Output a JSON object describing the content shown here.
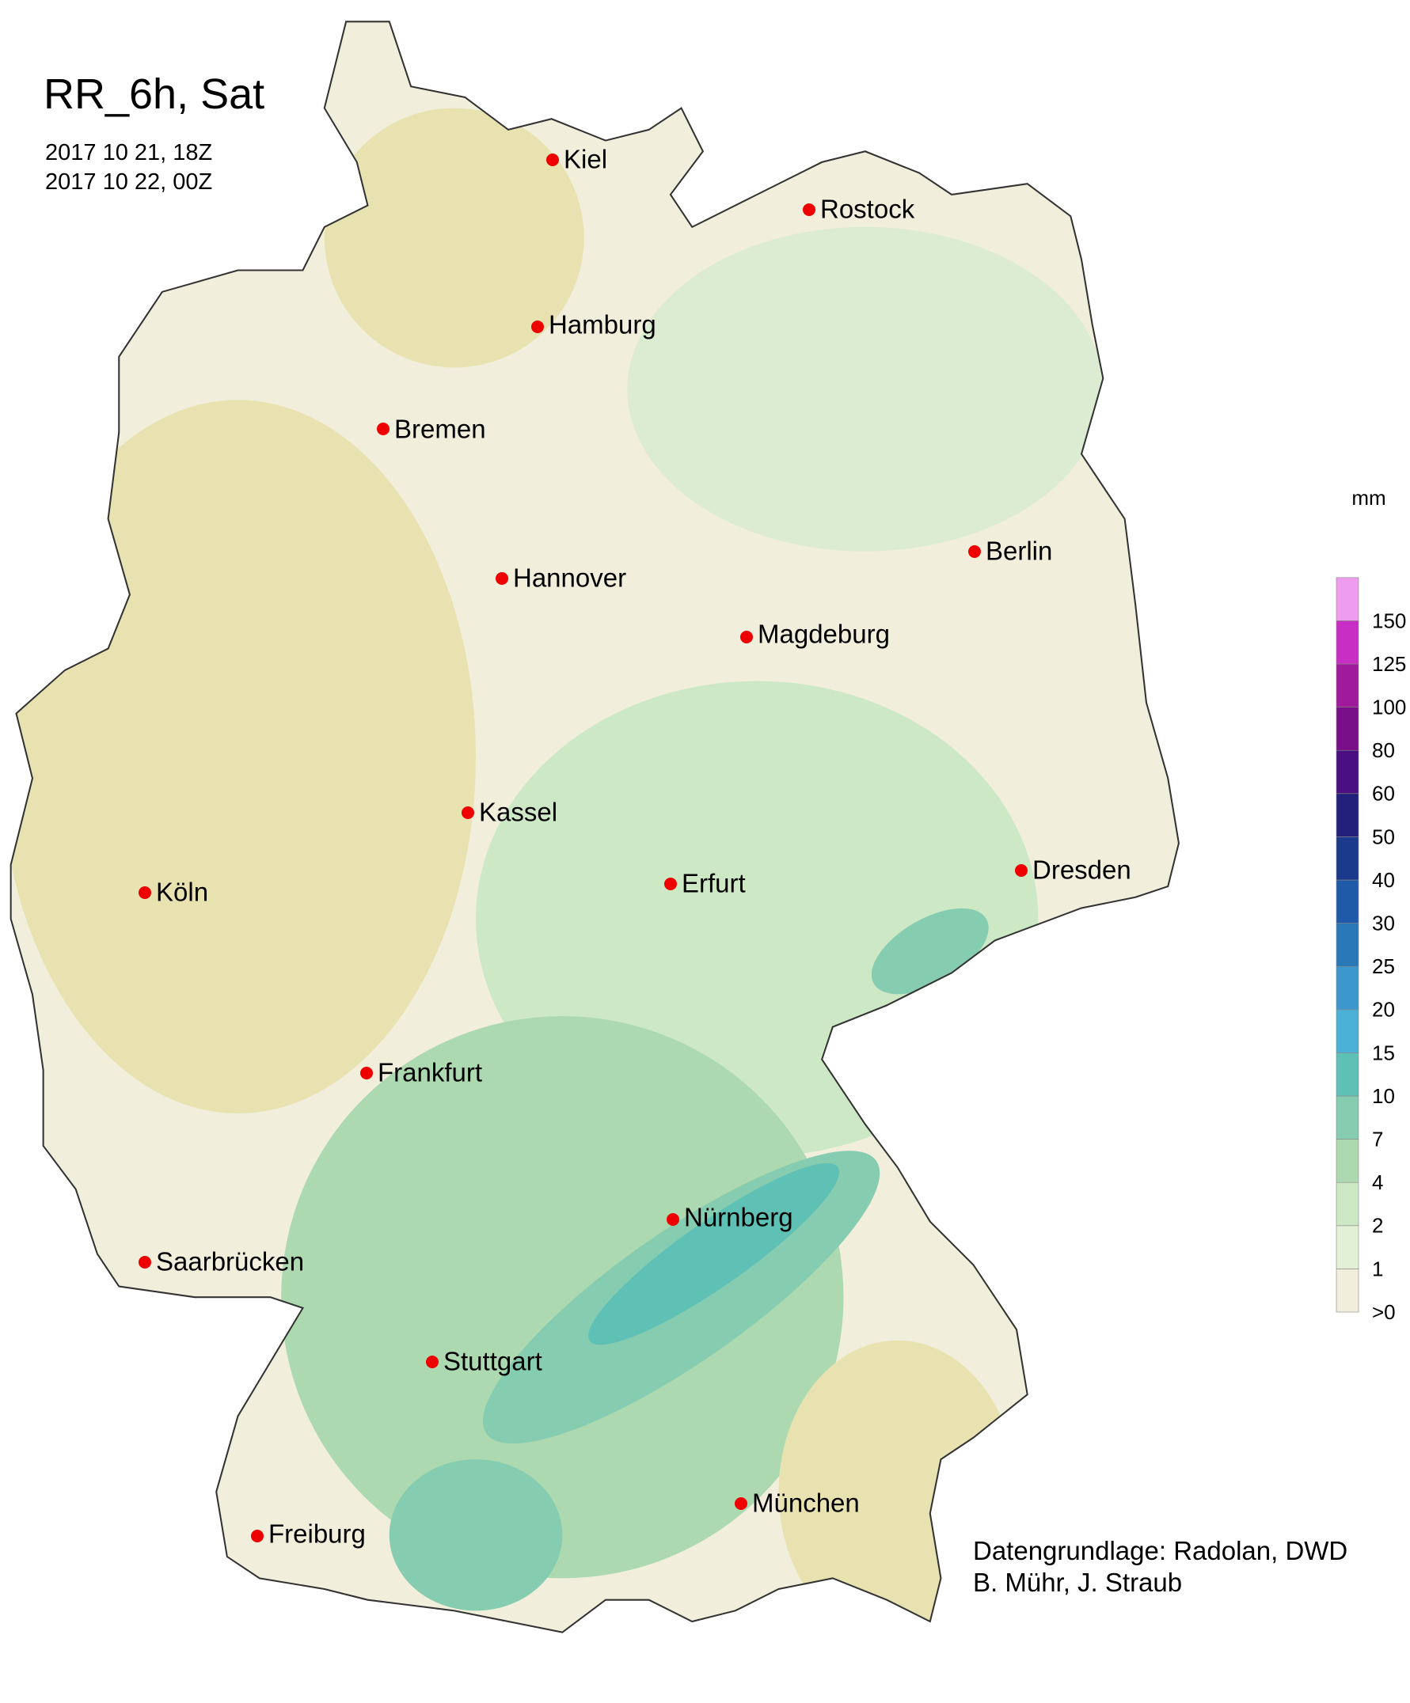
{
  "title": "RR_6h, Sat",
  "dates": [
    "2017 10 21, 18Z",
    "2017 10 22, 00Z"
  ],
  "cities": [
    "Kiel",
    "Rostock",
    "Hamburg",
    "Bremen",
    "Berlin",
    "Hannover",
    "Magdeburg",
    "Kassel",
    "Köln",
    "Dresden",
    "Erfurt",
    "Frankfurt",
    "Nürnberg",
    "Saarbrücken",
    "Stuttgart",
    "München",
    "Freiburg"
  ],
  "legend": {
    "unit": "mm",
    "items": [
      {
        "label": ">0",
        "color": "#f1eedb"
      },
      {
        "label": "1",
        "color": "#e2f0d6"
      },
      {
        "label": "2",
        "color": "#cde8c5"
      },
      {
        "label": "4",
        "color": "#acd9b0"
      },
      {
        "label": "7",
        "color": "#86ccb0"
      },
      {
        "label": "10",
        "color": "#5fc0b5"
      },
      {
        "label": "15",
        "color": "#4bb0d6"
      },
      {
        "label": "20",
        "color": "#3b97cc"
      },
      {
        "label": "25",
        "color": "#2a78b8"
      },
      {
        "label": "30",
        "color": "#1f5aa8"
      },
      {
        "label": "40",
        "color": "#1b3a8c"
      },
      {
        "label": "50",
        "color": "#22207a"
      },
      {
        "label": "60",
        "color": "#4a0f80"
      },
      {
        "label": "80",
        "color": "#780f88"
      },
      {
        "label": "100",
        "color": "#a01a9c"
      },
      {
        "label": "125",
        "color": "#c82ec4"
      },
      {
        "label": "150",
        "color": "#ee9cee"
      }
    ]
  },
  "credits": [
    "Datengrundlage: Radolan, DWD",
    "B. Mühr, J. Straub"
  ]
}
